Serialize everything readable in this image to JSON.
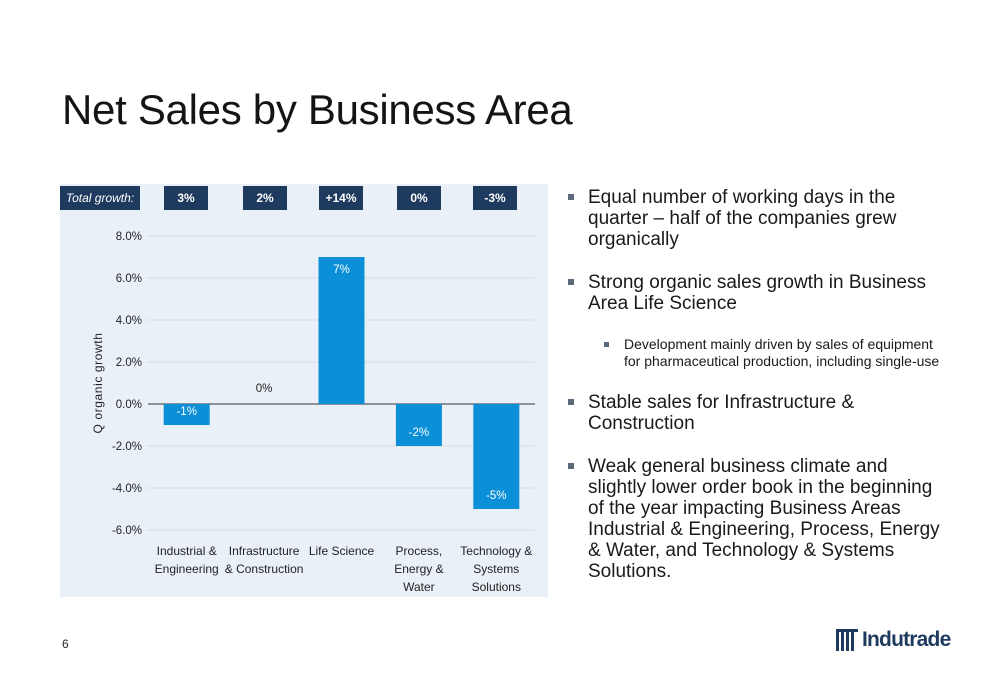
{
  "slide": {
    "title": "Net Sales by Business Area",
    "page_number": "6",
    "logo_text": "Indutrade"
  },
  "total_growth": {
    "label": "Total growth:",
    "values": [
      "3%",
      "2%",
      "+14%",
      "0%",
      "-3%"
    ]
  },
  "colors": {
    "bar": "#0b8fd6",
    "header_box": "#1f3a5f",
    "panel": "#eaf0f8",
    "text_light": "#ffffff"
  },
  "chart_data": {
    "type": "bar",
    "categories": [
      [
        "Industrial &",
        "Engineering"
      ],
      [
        "Infrastructure",
        "& Construction"
      ],
      [
        "Life Science"
      ],
      [
        "Process,",
        "Energy &",
        "Water"
      ],
      [
        "Technology &",
        "Systems",
        "Solutions"
      ]
    ],
    "values": [
      -1,
      0,
      7,
      -2,
      -5
    ],
    "data_labels": [
      "-1%",
      "0%",
      "7%",
      "-2%",
      "-5%"
    ],
    "ylabel": "Q organic growth",
    "ylim": [
      -6,
      8
    ],
    "yticks": [
      8,
      6,
      4,
      2,
      0,
      -2,
      -4,
      -6
    ],
    "ytick_labels": [
      "8.0%",
      "6.0%",
      "4.0%",
      "2.0%",
      "0.0%",
      "-2.0%",
      "-4.0%",
      "-6.0%"
    ],
    "grid": true
  },
  "bullets": [
    {
      "level": 1,
      "text": "Equal number of working days in the quarter – half of the companies grew organically"
    },
    {
      "level": 1,
      "text": "Strong organic sales growth in Business Area Life Science"
    },
    {
      "level": 2,
      "text": "Development mainly driven by sales of equipment for pharmaceutical production, including single-use"
    },
    {
      "level": 1,
      "text": "Stable sales for Infrastructure & Construction"
    },
    {
      "level": 1,
      "text": "Weak general business climate and slightly lower order book in the beginning of the year impacting Business Areas Industrial & Engineering, Process, Energy & Water, and Technology & Systems Solutions."
    }
  ]
}
